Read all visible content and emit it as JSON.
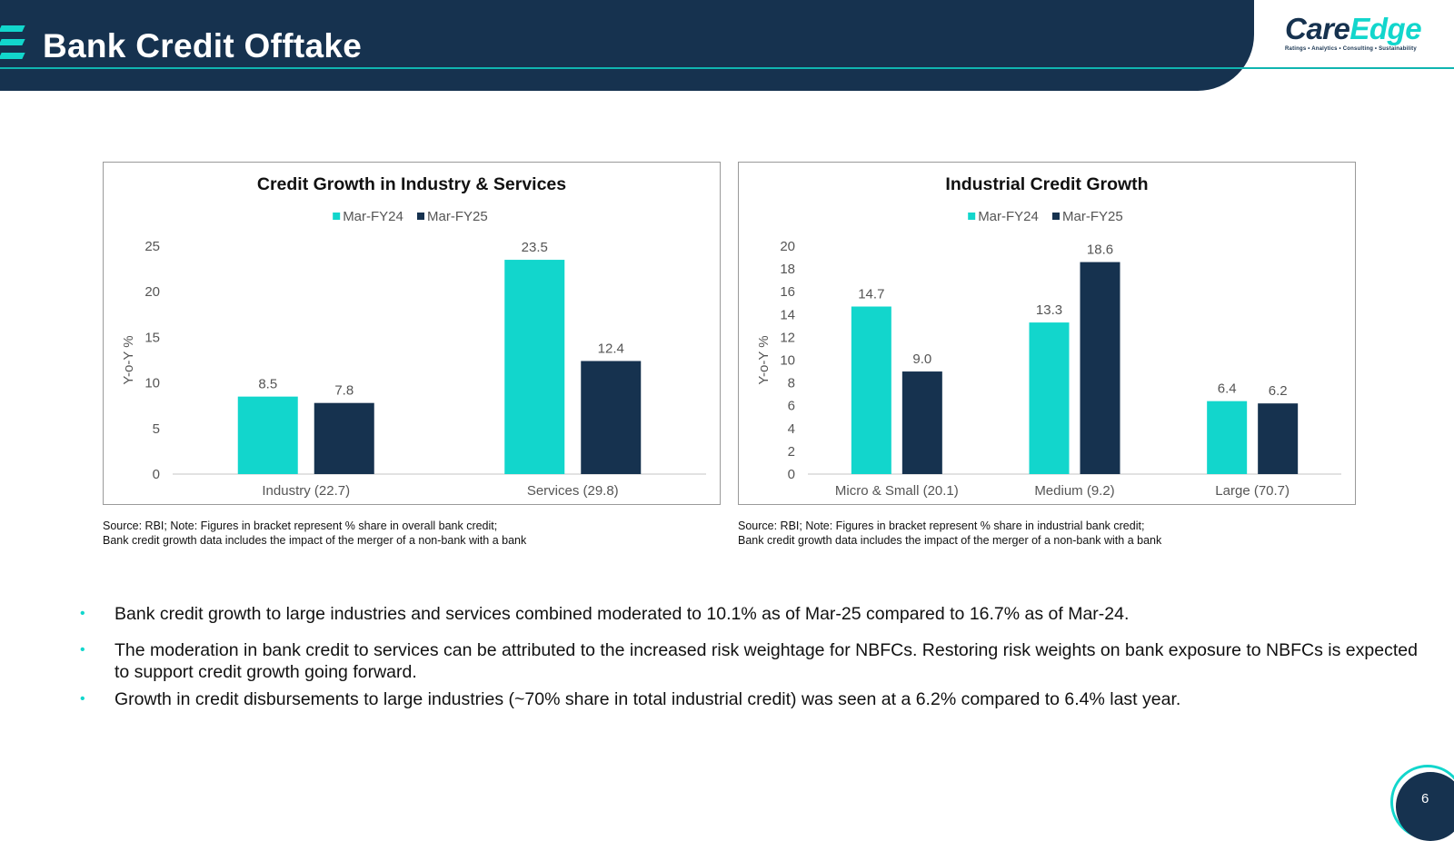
{
  "header": {
    "title": "Bank Credit Offtake",
    "logo": {
      "care": "Care",
      "edge": "Edge",
      "tagline": "Ratings • Analytics • Consulting • Sustainability"
    }
  },
  "colors": {
    "navy": "#16324f",
    "teal": "#12d6cc"
  },
  "chart_data": [
    {
      "type": "bar",
      "title": "Credit Growth in Industry & Services",
      "ylabel": "Y-o-Y %",
      "categories": [
        "Industry (22.7)",
        "Services (29.8)"
      ],
      "series": [
        {
          "name": "Mar-FY24",
          "color": "#12d6cc",
          "values": [
            8.5,
            23.5
          ],
          "labels": [
            "8.5",
            "23.5"
          ]
        },
        {
          "name": "Mar-FY25",
          "color": "#16324f",
          "values": [
            7.8,
            12.4
          ],
          "labels": [
            "7.8",
            "12.4"
          ]
        }
      ],
      "ylim": [
        0,
        25
      ],
      "yticks": [
        0,
        5,
        10,
        15,
        20,
        25
      ],
      "legend": "top",
      "grid": false
    },
    {
      "type": "bar",
      "title": "Industrial Credit Growth",
      "ylabel": "Y-o-Y %",
      "categories": [
        "Micro & Small (20.1)",
        "Medium (9.2)",
        "Large (70.7)"
      ],
      "series": [
        {
          "name": "Mar-FY24",
          "color": "#12d6cc",
          "values": [
            14.7,
            13.3,
            6.4
          ],
          "labels": [
            "14.7",
            "13.3",
            "6.4"
          ]
        },
        {
          "name": "Mar-FY25",
          "color": "#16324f",
          "values": [
            9.0,
            18.6,
            6.2
          ],
          "labels": [
            "9.0",
            "18.6",
            "6.2"
          ]
        }
      ],
      "ylim": [
        0,
        20
      ],
      "yticks": [
        0,
        2,
        4,
        6,
        8,
        10,
        12,
        14,
        16,
        18,
        20
      ],
      "legend": "top",
      "grid": false
    }
  ],
  "notes": {
    "left": {
      "line1": "Source: RBI; Note: Figures in bracket represent % share in overall bank credit;",
      "line2": "Bank credit growth data includes the impact of the merger of a non-bank with a bank"
    },
    "right": {
      "line1": "Source: RBI; Note: Figures in bracket represent % share in industrial bank credit;",
      "line2": "Bank credit growth data includes the impact of the merger of a non-bank with a bank"
    }
  },
  "bullets": [
    "Bank credit growth to large industries and services combined moderated to 10.1% as of Mar-25 compared to 16.7% as of Mar-24.",
    "The moderation in bank credit to services can be attributed to the increased risk weightage for NBFCs. Restoring risk weights on bank exposure to NBFCs is expected to support credit growth going forward.",
    "Growth in credit disbursements to large industries (~70% share in total industrial credit) was seen at a 6.2% compared to 6.4% last year."
  ],
  "page_number": "6"
}
